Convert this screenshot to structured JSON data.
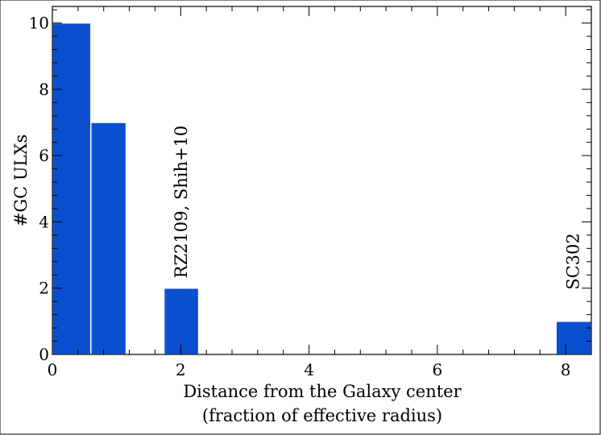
{
  "chart_data": {
    "type": "bar",
    "x_left_edges": [
      0,
      0.6,
      1.74,
      7.85
    ],
    "x_right_edges": [
      0.6,
      1.15,
      2.28,
      8.4
    ],
    "values": [
      10,
      7,
      2,
      1
    ],
    "bar_color": "#0a4fcf",
    "xlabel_line1": "Distance from the Galaxy center",
    "xlabel_line2": "(fraction of effective radius)",
    "ylabel": "#GC ULXs",
    "xlim": [
      0,
      8.4
    ],
    "ylim": [
      0,
      10.5
    ],
    "x_ticks": [
      0,
      2,
      4,
      6,
      8
    ],
    "y_ticks": [
      0,
      2,
      4,
      6,
      8,
      10
    ],
    "x_ticks_minor_step": 0.4,
    "y_ticks_minor_step": 0.4,
    "grid": false,
    "annotations": [
      {
        "text": "RZ2109, Shih+10",
        "x": 2.01,
        "y": 2.3
      },
      {
        "text": "SC302",
        "x": 8.12,
        "y": 1.95
      }
    ]
  }
}
